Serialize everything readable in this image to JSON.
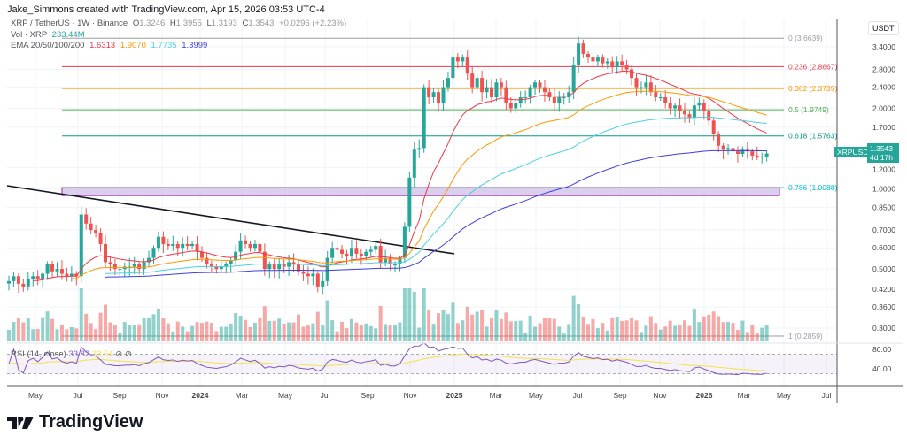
{
  "header": {
    "credit": "Jake_Simmons created with TradingView.com, Apr 15, 2026 03:53 UTC-4",
    "symbol": "XRP / TetherUS · 1W · Binance",
    "o": "1.3246",
    "h": "1.3955",
    "l": "1.3193",
    "c": "1.3543",
    "change": "+0.0296 (+2.23%)",
    "vol_label": "Vol · XRP",
    "vol_value": "233.44M",
    "ema_label": "EMA 20/50/100/200",
    "ema_values": [
      "1.6313",
      "1.9070",
      "1.7735",
      "1.3999"
    ],
    "rsi_label": "RSI (14, close)",
    "rsi_value": "33.82",
    "rsi_ma": "33.54"
  },
  "colors": {
    "up": "#26a69a",
    "down": "#ef5350",
    "ema": [
      "#f23645",
      "#ff9800",
      "#4dd0e1",
      "#3f3fdd"
    ],
    "rsi": "#7e57c2",
    "rsi_ma": "#f5e14a"
  },
  "price_axis": {
    "unit": "USDT",
    "ticks": [
      "3.4000",
      "2.8000",
      "2.4000",
      "2.0000",
      "1.7000",
      "1.2000",
      "1.0000",
      "0.8500",
      "0.7000",
      "0.6000",
      "0.5000",
      "0.4200",
      "0.3600",
      "0.3000"
    ],
    "rsi_ticks": [
      "80.00",
      "40.00"
    ]
  },
  "last_price": {
    "symbol": "XRPUSDT",
    "price": "1.3543",
    "countdown": "4d 17h"
  },
  "fib": [
    {
      "label": "0 (3.6639)",
      "value": 3.6639,
      "color": "#9e9e9e"
    },
    {
      "label": "0.236 (2.8667)",
      "value": 2.8667,
      "color": "#f23645"
    },
    {
      "label": "0.382 (2.3735)",
      "value": 2.3735,
      "color": "#ff9800"
    },
    {
      "label": "0.5 (1.9749)",
      "value": 1.9749,
      "color": "#4caf50"
    },
    {
      "label": "0.618 (1.5763)",
      "value": 1.5763,
      "color": "#089981"
    },
    {
      "label": "0.786 (1.0088)",
      "value": 1.0088,
      "color": "#00bcd4"
    },
    {
      "label": "1 (0.2859)",
      "value": 0.2859,
      "color": "#9e9e9e"
    }
  ],
  "time_axis": [
    "May",
    "Jul",
    "Sep",
    "Nov",
    "2024",
    "Mar",
    "May",
    "Jul",
    "Sep",
    "Nov",
    "2025",
    "Mar",
    "May",
    "Jul",
    "Sep",
    "Nov",
    "2026",
    "Mar",
    "May",
    "Jul"
  ],
  "chart_data": {
    "type": "candlestick",
    "interval": "1W",
    "scale": "log",
    "ylim": [
      0.27,
      3.7
    ],
    "x_start": "2023-04",
    "x_end": "2026-04-15",
    "closes": [
      0.45,
      0.47,
      0.44,
      0.43,
      0.46,
      0.47,
      0.46,
      0.48,
      0.52,
      0.49,
      0.5,
      0.48,
      0.47,
      0.48,
      0.47,
      0.8,
      0.74,
      0.7,
      0.68,
      0.62,
      0.53,
      0.52,
      0.5,
      0.5,
      0.51,
      0.51,
      0.52,
      0.5,
      0.53,
      0.55,
      0.6,
      0.66,
      0.62,
      0.61,
      0.62,
      0.6,
      0.62,
      0.61,
      0.62,
      0.58,
      0.55,
      0.52,
      0.51,
      0.5,
      0.51,
      0.52,
      0.54,
      0.58,
      0.64,
      0.62,
      0.6,
      0.62,
      0.58,
      0.5,
      0.52,
      0.5,
      0.52,
      0.51,
      0.53,
      0.52,
      0.49,
      0.48,
      0.47,
      0.48,
      0.43,
      0.45,
      0.55,
      0.6,
      0.59,
      0.57,
      0.56,
      0.6,
      0.57,
      0.56,
      0.58,
      0.59,
      0.61,
      0.53,
      0.55,
      0.52,
      0.52,
      0.55,
      0.72,
      1.1,
      1.4,
      1.42,
      2.4,
      2.2,
      2.3,
      2.1,
      2.4,
      2.6,
      3.1,
      3.0,
      3.1,
      2.7,
      2.4,
      2.6,
      2.3,
      2.4,
      2.2,
      2.5,
      2.4,
      2.1,
      2.0,
      2.1,
      2.2,
      2.2,
      2.4,
      2.5,
      2.4,
      2.3,
      2.2,
      2.1,
      2.2,
      2.2,
      2.3,
      2.9,
      3.5,
      3.2,
      3.1,
      3.0,
      3.1,
      2.95,
      3.0,
      2.85,
      3.0,
      2.9,
      2.8,
      2.6,
      2.4,
      2.4,
      2.5,
      2.3,
      2.2,
      2.2,
      2.1,
      2.0,
      2.05,
      1.95,
      1.9,
      1.85,
      2.05,
      2.1,
      1.95,
      1.8,
      1.6,
      1.45,
      1.4,
      1.42,
      1.38,
      1.35,
      1.4,
      1.38,
      1.33,
      1.32,
      1.32,
      1.3543
    ]
  }
}
